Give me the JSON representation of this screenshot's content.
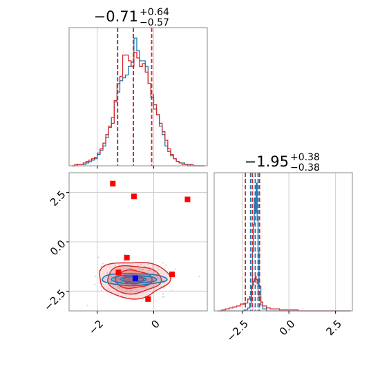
{
  "colors": {
    "blue": "#1f77b4",
    "red": "#d62728",
    "marker_red": "#ff0000",
    "marker_blue": "#0000ff",
    "grid": "#cccccc"
  },
  "chart_data": [
    {
      "panel": "top-left",
      "type": "histogram",
      "title": {
        "main": "−0.71",
        "sup": "+0.64",
        "sub": "−0.57"
      },
      "xlim": [
        -3.0,
        1.9
      ],
      "x_ticks": [
        -2,
        0
      ],
      "quantile_lines": {
        "red": [
          -1.28,
          -0.72,
          -0.07
        ],
        "blue": [
          -1.28,
          -0.72,
          -0.07
        ]
      },
      "bin_edges": [
        -2.9,
        -2.8,
        -2.7,
        -2.6,
        -2.5,
        -2.4,
        -2.3,
        -2.2,
        -2.1,
        -2.0,
        -1.9,
        -1.8,
        -1.7,
        -1.6,
        -1.5,
        -1.4,
        -1.3,
        -1.2,
        -1.1,
        -1.0,
        -0.9,
        -0.8,
        -0.7,
        -0.6,
        -0.5,
        -0.4,
        -0.3,
        -0.2,
        -0.1,
        0.0,
        0.1,
        0.2,
        0.3,
        0.4,
        0.5,
        0.6,
        0.7,
        0.8,
        0.9,
        1.0,
        1.1,
        1.2,
        1.3,
        1.4,
        1.5,
        1.6,
        1.7,
        1.8
      ],
      "series": [
        {
          "color": "blue",
          "counts": [
            0,
            0,
            1,
            1,
            1,
            2,
            3,
            4,
            5,
            8,
            11,
            14,
            20,
            27,
            34,
            45,
            52,
            60,
            62,
            64,
            70,
            73,
            90,
            81,
            74,
            74,
            70,
            58,
            48,
            40,
            36,
            28,
            22,
            14,
            10,
            7,
            5,
            3,
            2,
            2,
            1,
            1,
            0,
            0,
            0,
            0,
            0
          ]
        },
        {
          "color": "red",
          "counts": [
            0,
            1,
            1,
            1,
            2,
            3,
            4,
            5,
            6,
            9,
            12,
            16,
            22,
            28,
            30,
            46,
            58,
            63,
            78,
            78,
            74,
            70,
            80,
            76,
            70,
            72,
            66,
            58,
            50,
            43,
            36,
            30,
            24,
            18,
            12,
            8,
            5,
            3,
            2,
            1,
            1,
            0,
            1,
            0,
            0,
            0,
            0
          ]
        }
      ]
    },
    {
      "panel": "bottom-left",
      "type": "scatter",
      "xlim": [
        -3.0,
        1.9
      ],
      "ylim": [
        -3.5,
        3.5
      ],
      "x_ticks": [
        -2,
        0
      ],
      "y_ticks": [
        2.5,
        0.0,
        -2.5
      ],
      "x_tick_labels": [
        "−2",
        "0"
      ],
      "y_tick_labels": [
        "2.5",
        "0.0",
        "−2.5"
      ],
      "contour_center": [
        -0.72,
        -1.9
      ],
      "markers_red": [
        [
          -1.45,
          2.95
        ],
        [
          -0.7,
          2.3
        ],
        [
          1.2,
          2.15
        ],
        [
          -0.95,
          -0.8
        ],
        [
          -1.25,
          -1.55
        ],
        [
          0.65,
          -1.65
        ],
        [
          -0.2,
          -2.9
        ]
      ],
      "marker_blue": [
        -0.65,
        -1.85
      ]
    },
    {
      "panel": "bottom-right",
      "type": "histogram",
      "title": {
        "main": "−1.95",
        "sup": "+0.38",
        "sub": "−0.38"
      },
      "xlim": [
        -4.0,
        3.4
      ],
      "x_ticks": [
        -2.5,
        0.0,
        2.5
      ],
      "x_tick_labels": [
        "−2.5",
        "0.0",
        "2.5"
      ],
      "quantile_lines": {
        "red": [
          -2.33,
          -1.95,
          -1.57
        ],
        "blue": [
          -2.05,
          -1.8,
          -1.65
        ]
      },
      "bin_edges": [
        -3.8,
        -3.6,
        -3.4,
        -3.2,
        -3.0,
        -2.8,
        -2.6,
        -2.4,
        -2.2,
        -2.1,
        -2.0,
        -1.95,
        -1.9,
        -1.85,
        -1.8,
        -1.75,
        -1.7,
        -1.65,
        -1.6,
        -1.5,
        -1.4,
        -1.2,
        -1.0,
        -0.5,
        0.0,
        0.5,
        1.0,
        1.5,
        2.0,
        2.5,
        3.0,
        3.3
      ],
      "series": [
        {
          "color": "blue",
          "counts": [
            0,
            0,
            0,
            0,
            0,
            0,
            0,
            1,
            3,
            8,
            25,
            60,
            88,
            115,
            100,
            130,
            92,
            60,
            25,
            6,
            2,
            0,
            0,
            0,
            0,
            0,
            0,
            0,
            0,
            0,
            0
          ]
        },
        {
          "color": "red",
          "counts": [
            0,
            1,
            2,
            3,
            4,
            5,
            7,
            8,
            12,
            15,
            24,
            26,
            30,
            33,
            35,
            32,
            28,
            20,
            14,
            9,
            5,
            3,
            2,
            1,
            1,
            0,
            0,
            0,
            0,
            0,
            0
          ]
        }
      ]
    }
  ]
}
